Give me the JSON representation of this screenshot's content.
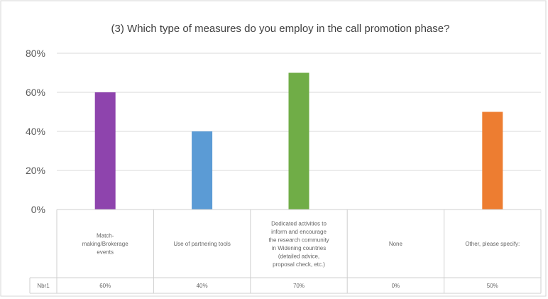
{
  "chart_data": {
    "type": "bar",
    "title": "(3) Which type of measures do you employ in the call promotion phase?",
    "categories": [
      [
        "Match-",
        "making/Brokerage",
        "events"
      ],
      [
        "Use of partnering tools"
      ],
      [
        "Dedicated activities to",
        "inform and encourage",
        "the research community",
        "in Widening countries",
        "(detailed advice,",
        "proposal check, etc.)"
      ],
      [
        "None"
      ],
      [
        "Other, please specify:"
      ]
    ],
    "series": [
      {
        "name": "Nbr1",
        "values": [
          60,
          40,
          70,
          0,
          50
        ]
      }
    ],
    "data_labels": [
      "60%",
      "40%",
      "70%",
      "0%",
      "50%"
    ],
    "colors": [
      "#8e44ad",
      "#5b9bd5",
      "#70ad47",
      "#a5a5a5",
      "#ed7d31"
    ],
    "ylim": [
      0,
      80
    ],
    "yticks": [
      "0%",
      "20%",
      "40%",
      "60%",
      "80%"
    ],
    "grid": true,
    "legend": "data table below axis"
  }
}
